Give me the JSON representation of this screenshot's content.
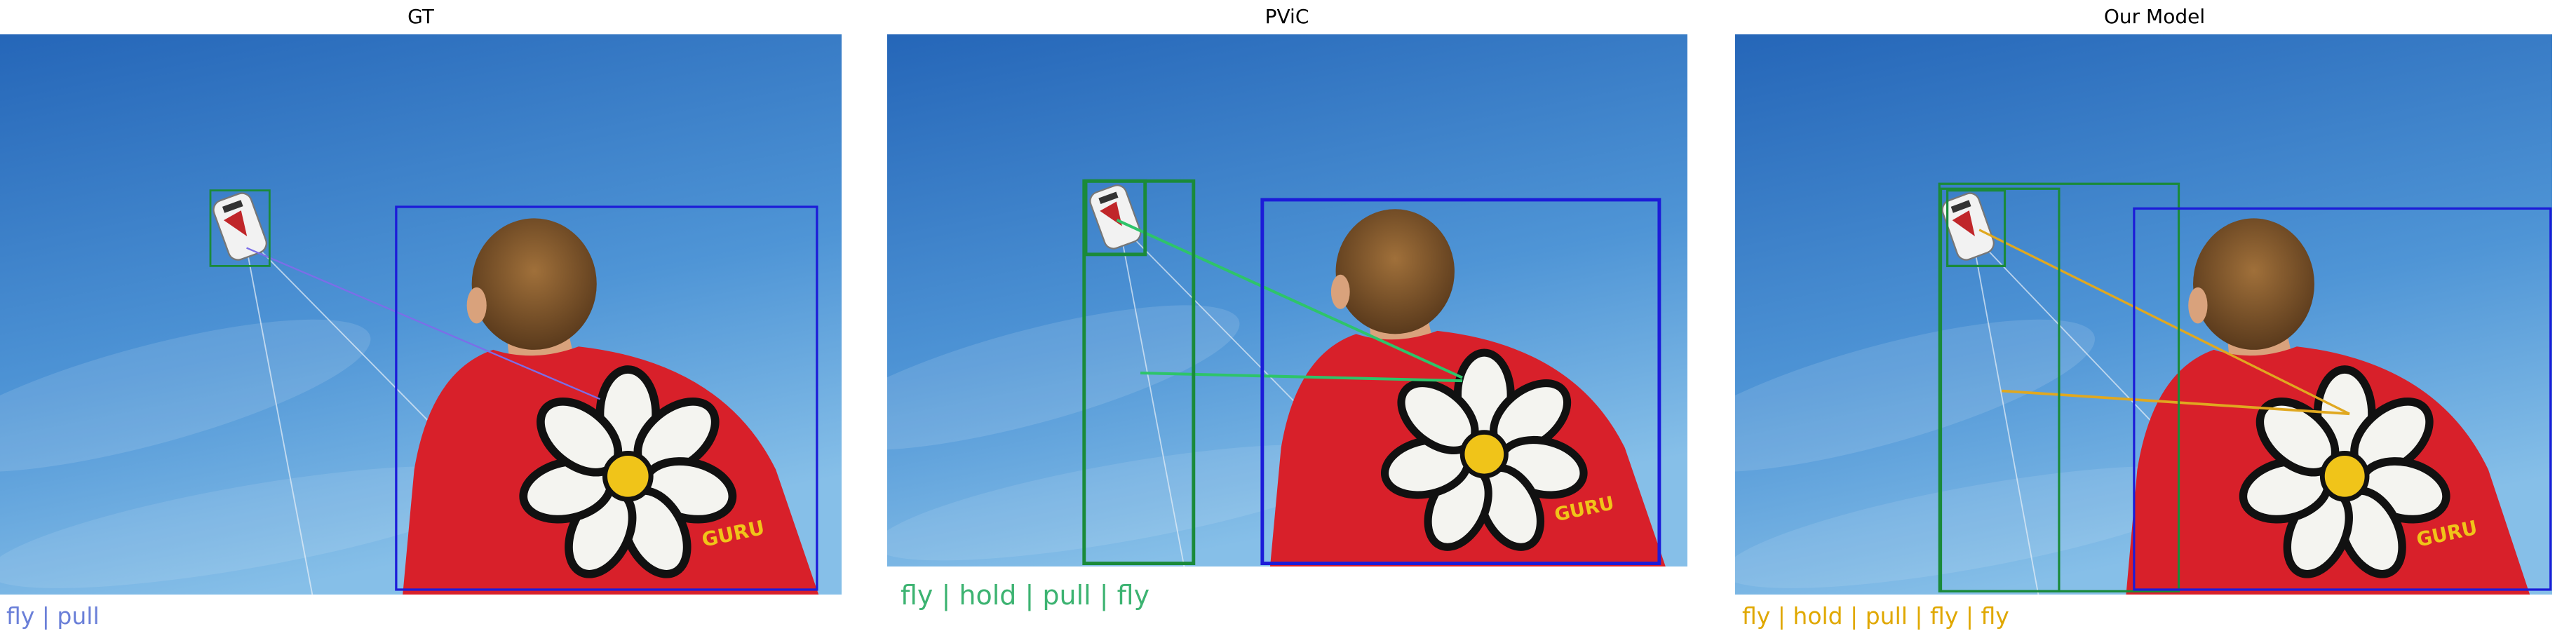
{
  "panels": [
    {
      "title": "GT",
      "caption": "fly | pull"
    },
    {
      "title": "PViC",
      "caption": "fly | hold | pull | fly"
    },
    {
      "title": "Our Model",
      "caption": "fly | hold | pull | fly | fly"
    }
  ]
}
